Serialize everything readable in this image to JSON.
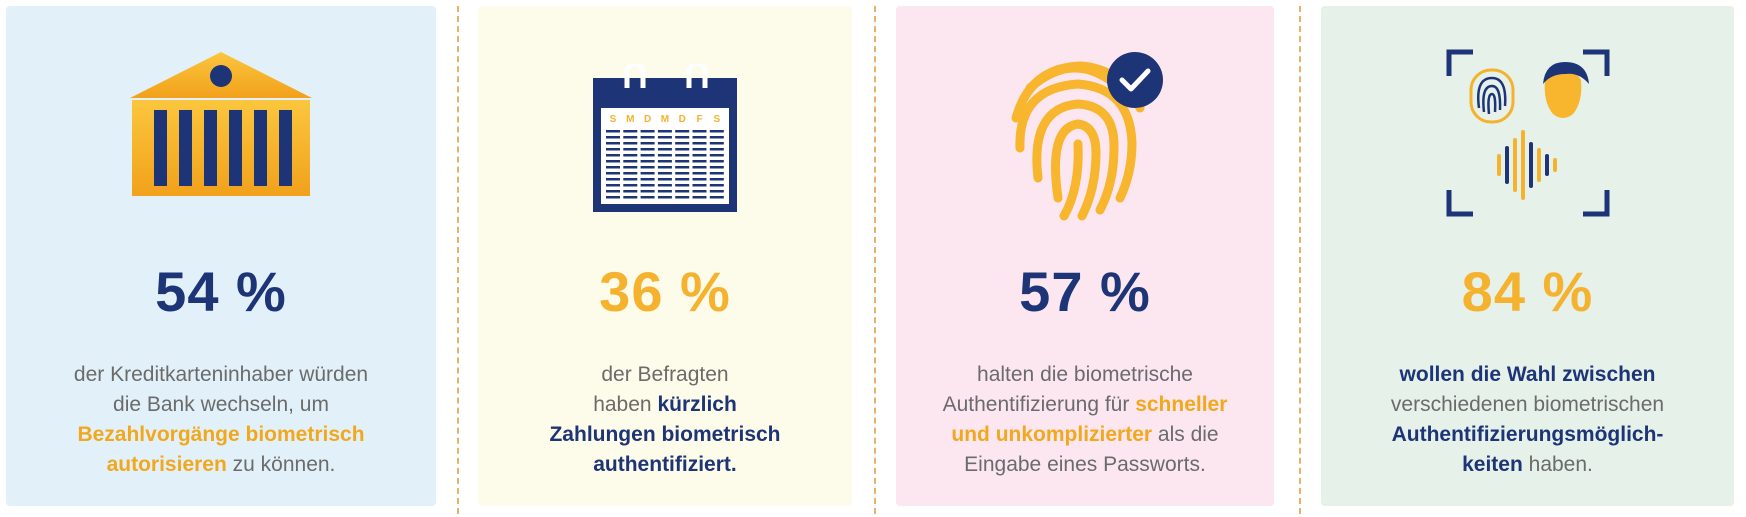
{
  "cards": [
    {
      "icon": "bank-icon",
      "percent": "54 %",
      "lines": [
        [
          {
            "t": "der Kreditkarteninhaber würden",
            "s": "plain"
          }
        ],
        [
          {
            "t": "die Bank wechseln, um",
            "s": "plain"
          }
        ],
        [
          {
            "t": "Bezahlvorgänge biometrisch",
            "s": "gold"
          }
        ],
        [
          {
            "t": "autorisieren",
            "s": "gold"
          },
          {
            "t": " zu können.",
            "s": "plain"
          }
        ]
      ]
    },
    {
      "icon": "calendar-icon",
      "percent": "36 %",
      "calendar_days": [
        "S",
        "M",
        "D",
        "M",
        "D",
        "F",
        "S"
      ],
      "lines": [
        [
          {
            "t": "der Befragten",
            "s": "plain"
          }
        ],
        [
          {
            "t": "haben ",
            "s": "plain"
          },
          {
            "t": "kürzlich",
            "s": "blue"
          }
        ],
        [
          {
            "t": "Zahlungen biometrisch",
            "s": "blue"
          }
        ],
        [
          {
            "t": "authentifiziert.",
            "s": "blue"
          }
        ]
      ]
    },
    {
      "icon": "fingerprint-check-icon",
      "percent": "57 %",
      "lines": [
        [
          {
            "t": "halten die biometrische",
            "s": "plain"
          }
        ],
        [
          {
            "t": "Authentifizierung für ",
            "s": "plain"
          },
          {
            "t": "schneller",
            "s": "gold"
          }
        ],
        [
          {
            "t": "und unkomplizierter",
            "s": "gold"
          },
          {
            "t": " als die",
            "s": "plain"
          }
        ],
        [
          {
            "t": "Eingabe eines Passworts.",
            "s": "plain"
          }
        ]
      ]
    },
    {
      "icon": "biometric-scan-icon",
      "percent": "84 %",
      "lines": [
        [
          {
            "t": "wollen die Wahl zwischen",
            "s": "blue"
          }
        ],
        [
          {
            "t": "verschiedenen biometrischen",
            "s": "plain"
          }
        ],
        [
          {
            "t": "Authentifizierungsmöglich-",
            "s": "blue"
          }
        ],
        [
          {
            "t": "keiten",
            "s": "blue"
          },
          {
            "t": " haben.",
            "s": "plain"
          }
        ]
      ]
    }
  ],
  "colors": {
    "navy": "#1d3476",
    "gold": "#f5b22f",
    "text_gray": "#6b6b6b",
    "card_blue": "#e2f1f9",
    "card_yellow": "#fdfbe9",
    "card_pink": "#fce7f1",
    "card_green": "#e6f1ea"
  }
}
